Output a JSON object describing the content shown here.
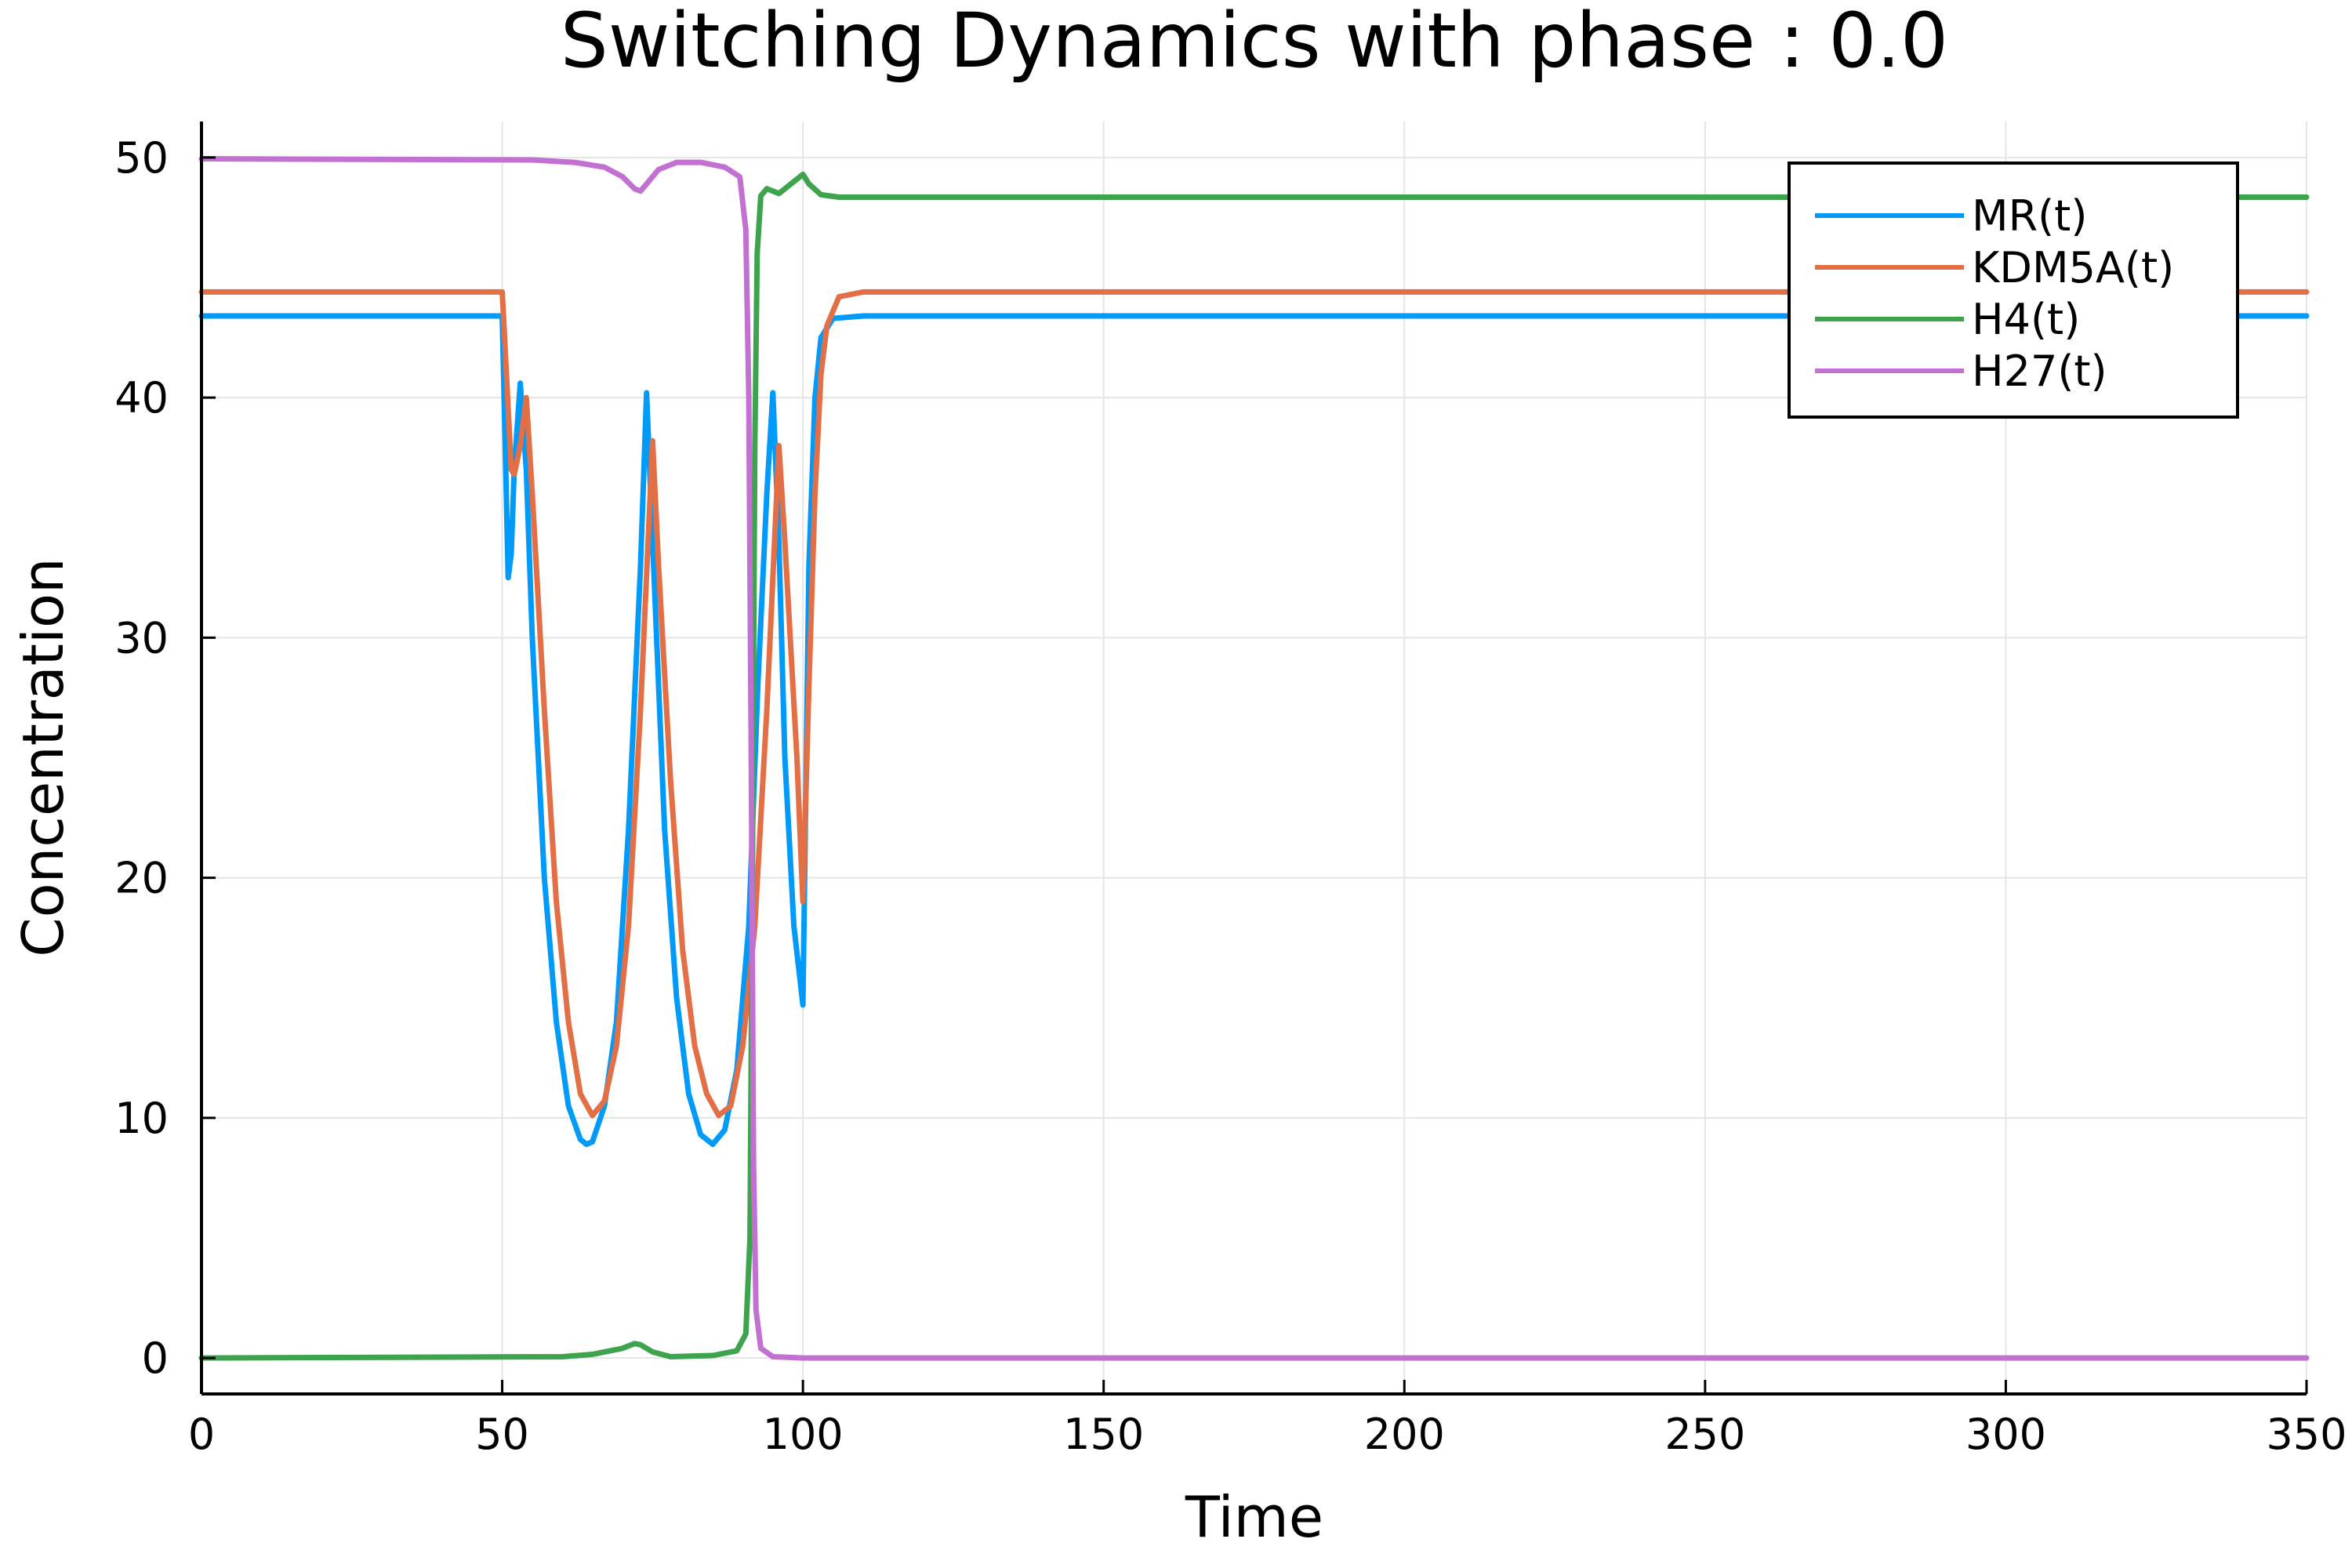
{
  "chart_data": {
    "type": "line",
    "title": "Switching Dynamics with phase : 0.0",
    "xlabel": "Time",
    "ylabel": "Concentration",
    "xlim": [
      0,
      350
    ],
    "ylim": [
      -1.5,
      51.5
    ],
    "xticks": [
      0,
      50,
      100,
      150,
      200,
      250,
      300,
      350
    ],
    "yticks": [
      0,
      10,
      20,
      30,
      40,
      50
    ],
    "grid": true,
    "legend_position": "top-right",
    "series": [
      {
        "name": "MR(t)",
        "color": "#009af9",
        "points": [
          [
            0,
            43.4
          ],
          [
            50,
            43.4
          ],
          [
            50.5,
            38
          ],
          [
            51,
            32.5
          ],
          [
            51.5,
            33.5
          ],
          [
            52,
            37
          ],
          [
            53,
            40.6
          ],
          [
            54,
            37
          ],
          [
            55,
            30
          ],
          [
            57,
            20
          ],
          [
            59,
            14
          ],
          [
            61,
            10.5
          ],
          [
            63,
            9.1
          ],
          [
            64,
            8.9
          ],
          [
            65,
            9
          ],
          [
            67,
            10.5
          ],
          [
            69,
            14
          ],
          [
            71,
            22
          ],
          [
            73,
            33
          ],
          [
            74,
            40.2
          ],
          [
            75,
            34
          ],
          [
            77,
            22
          ],
          [
            79,
            15
          ],
          [
            81,
            11
          ],
          [
            83,
            9.3
          ],
          [
            85,
            8.9
          ],
          [
            87,
            9.5
          ],
          [
            89,
            12
          ],
          [
            91,
            18
          ],
          [
            92.5,
            28
          ],
          [
            94,
            36
          ],
          [
            95,
            40.2
          ],
          [
            96,
            34
          ],
          [
            97,
            25
          ],
          [
            98.5,
            18
          ],
          [
            100,
            14.7
          ],
          [
            101,
            33
          ],
          [
            102,
            40
          ],
          [
            103,
            42.5
          ],
          [
            105,
            43.3
          ],
          [
            110,
            43.4
          ],
          [
            350,
            43.4
          ]
        ]
      },
      {
        "name": "KDM5A(t)",
        "color": "#e26f46",
        "points": [
          [
            0,
            44.4
          ],
          [
            50,
            44.4
          ],
          [
            50.5,
            42
          ],
          [
            51.5,
            37
          ],
          [
            52,
            36.8
          ],
          [
            53,
            38
          ],
          [
            54,
            40
          ],
          [
            55,
            36
          ],
          [
            57,
            27
          ],
          [
            59,
            19
          ],
          [
            61,
            14
          ],
          [
            63,
            11
          ],
          [
            65,
            10.1
          ],
          [
            67,
            10.7
          ],
          [
            69,
            13
          ],
          [
            71,
            18
          ],
          [
            73,
            27
          ],
          [
            75,
            38.2
          ],
          [
            76,
            33
          ],
          [
            78,
            24
          ],
          [
            80,
            17
          ],
          [
            82,
            13
          ],
          [
            84,
            11
          ],
          [
            86,
            10.1
          ],
          [
            88,
            10.5
          ],
          [
            90,
            13
          ],
          [
            92,
            18
          ],
          [
            94,
            27
          ],
          [
            96,
            38
          ],
          [
            97,
            34
          ],
          [
            99,
            25
          ],
          [
            100,
            19
          ],
          [
            101,
            28
          ],
          [
            102,
            36
          ],
          [
            103,
            41
          ],
          [
            104,
            43
          ],
          [
            106,
            44.2
          ],
          [
            110,
            44.4
          ],
          [
            350,
            44.4
          ]
        ]
      },
      {
        "name": "H4(t)",
        "color": "#3da44d",
        "points": [
          [
            0,
            0
          ],
          [
            60,
            0.05
          ],
          [
            65,
            0.15
          ],
          [
            70,
            0.4
          ],
          [
            72,
            0.6
          ],
          [
            73,
            0.55
          ],
          [
            75,
            0.25
          ],
          [
            78,
            0.05
          ],
          [
            85,
            0.1
          ],
          [
            89,
            0.3
          ],
          [
            90.5,
            1
          ],
          [
            91.2,
            5
          ],
          [
            91.6,
            20
          ],
          [
            92,
            38
          ],
          [
            92.4,
            46
          ],
          [
            93,
            48.4
          ],
          [
            94,
            48.7
          ],
          [
            95,
            48.6
          ],
          [
            96,
            48.5
          ],
          [
            98,
            48.9
          ],
          [
            100,
            49.3
          ],
          [
            101,
            48.9
          ],
          [
            103,
            48.45
          ],
          [
            106,
            48.35
          ],
          [
            350,
            48.35
          ]
        ]
      },
      {
        "name": "H27(t)",
        "color": "#c271d2",
        "points": [
          [
            0,
            49.95
          ],
          [
            55,
            49.9
          ],
          [
            62,
            49.8
          ],
          [
            67,
            49.6
          ],
          [
            70,
            49.2
          ],
          [
            72,
            48.7
          ],
          [
            73,
            48.6
          ],
          [
            74,
            48.9
          ],
          [
            76,
            49.5
          ],
          [
            79,
            49.8
          ],
          [
            83,
            49.8
          ],
          [
            87,
            49.6
          ],
          [
            89.5,
            49.2
          ],
          [
            90.5,
            47
          ],
          [
            91,
            40
          ],
          [
            91.4,
            25
          ],
          [
            91.8,
            8
          ],
          [
            92.2,
            2
          ],
          [
            93,
            0.4
          ],
          [
            95,
            0.05
          ],
          [
            100,
            0
          ],
          [
            350,
            0
          ]
        ]
      }
    ]
  }
}
